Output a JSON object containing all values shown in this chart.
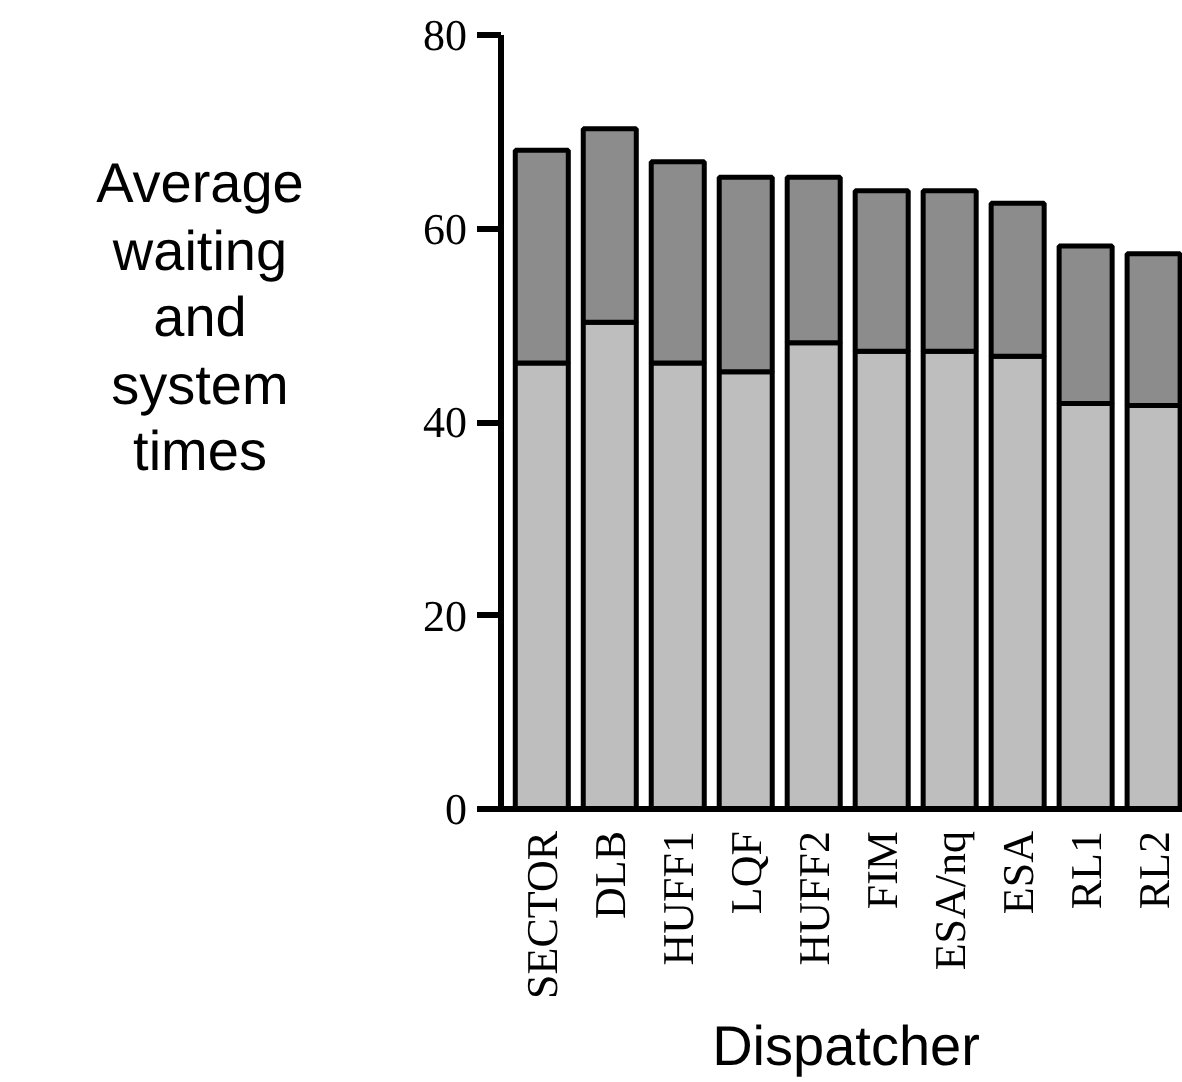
{
  "chart_data": {
    "type": "bar",
    "stacked": true,
    "xlabel": "Dispatcher",
    "ylabel": "Average\nwaiting\nand\nsystem\ntimes",
    "categories": [
      "SECTOR",
      "DLB",
      "HUFF1",
      "LQF",
      "HUFF2",
      "FIM",
      "ESA/nq",
      "ESA",
      "RL1",
      "RL2"
    ],
    "series": [
      {
        "color": "#bebebe",
        "values": [
          46.1,
          50.3,
          46.1,
          45.2,
          48.2,
          47.3,
          47.3,
          46.8,
          41.9,
          41.7
        ]
      },
      {
        "color": "#8c8c8c",
        "values": [
          22.0,
          20.0,
          20.8,
          20.1,
          17.1,
          16.6,
          16.6,
          15.8,
          16.3,
          15.7
        ]
      }
    ],
    "ylim": [
      0,
      80
    ],
    "yticks": [
      0,
      20,
      40,
      60,
      80
    ],
    "grid": false
  }
}
